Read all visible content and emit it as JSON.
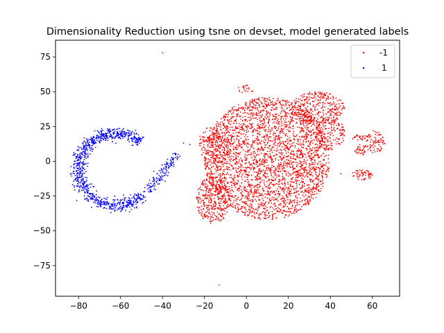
{
  "chart_data": {
    "type": "scatter",
    "title": "Dimensionality Reduction using tsne on devset, model generated labels",
    "xlabel": "",
    "ylabel": "",
    "xlim": [
      -91,
      73
    ],
    "ylim": [
      -97,
      87
    ],
    "xticks": [
      -80,
      -60,
      -40,
      -20,
      0,
      20,
      40,
      60
    ],
    "yticks": [
      -75,
      -50,
      -25,
      0,
      25,
      50,
      75
    ],
    "grid": false,
    "legend": {
      "placement": "top-right",
      "entries": [
        "-1",
        "1"
      ]
    },
    "series": [
      {
        "name": "-1",
        "color": "#ff0000",
        "points": [
          [
            -40,
            78
          ],
          [
            -13,
            -89
          ]
        ],
        "clusters": [
          {
            "shape": "ellipse",
            "cx": 10,
            "cy": 2,
            "rx": 30,
            "ry": 44,
            "count": 3000
          },
          {
            "shape": "ellipse",
            "cx": -16,
            "cy": -28,
            "rx": 8,
            "ry": 17,
            "count": 350
          },
          {
            "shape": "ellipse",
            "cx": -15,
            "cy": 12,
            "rx": 8,
            "ry": 14,
            "count": 200
          },
          {
            "shape": "ellipse",
            "cx": 34,
            "cy": 38,
            "rx": 13,
            "ry": 12,
            "count": 350
          },
          {
            "shape": "ellipse",
            "cx": 40,
            "cy": 20,
            "rx": 7,
            "ry": 12,
            "count": 150
          },
          {
            "shape": "ellipse",
            "cx": 0,
            "cy": 52,
            "rx": 4,
            "ry": 3,
            "count": 20
          },
          {
            "shape": "ellipse",
            "cx": 61,
            "cy": 14,
            "rx": 5,
            "ry": 8,
            "count": 80
          },
          {
            "shape": "ellipse",
            "cx": 54,
            "cy": 17,
            "rx": 4,
            "ry": 2,
            "count": 25
          },
          {
            "shape": "ellipse",
            "cx": 54,
            "cy": 8,
            "rx": 3,
            "ry": 4,
            "count": 30
          },
          {
            "shape": "ellipse",
            "cx": 55,
            "cy": -10,
            "rx": 5,
            "ry": 4,
            "count": 55
          }
        ]
      },
      {
        "name": "1",
        "color": "#0000ff",
        "points": [
          [
            6,
            40
          ],
          [
            45,
            -9
          ],
          [
            -27,
            12
          ],
          [
            -30,
            13
          ]
        ],
        "clusters": [
          {
            "shape": "arc",
            "cx": -62,
            "cy": -6,
            "rx": 18,
            "ry": 26,
            "a0": 50,
            "a1": 315,
            "thick": 3.5,
            "count": 900
          },
          {
            "shape": "line",
            "x0": -47,
            "y0": -22,
            "x1": -33,
            "y1": 6,
            "thick": 3.5,
            "count": 140
          }
        ]
      }
    ]
  }
}
